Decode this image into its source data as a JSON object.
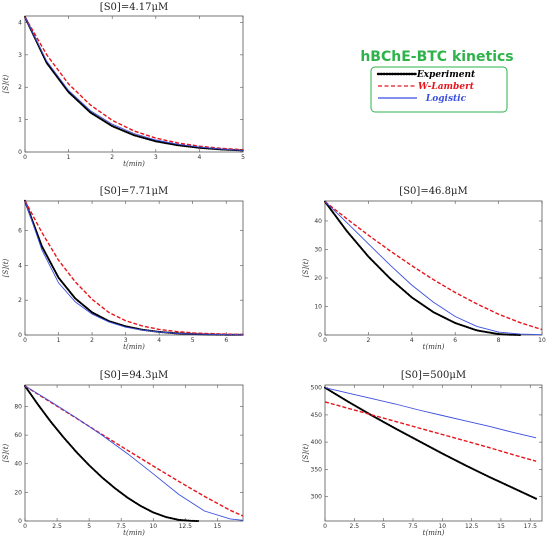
{
  "legend": {
    "title": "hBChE-BTC kinetics",
    "title_color": "#2db34a",
    "border_color": "#2db34a",
    "entries": [
      {
        "label": "Experiment",
        "color": "#000000",
        "style": "dotted",
        "icon": "dotted-line-icon"
      },
      {
        "label": "W-Lambert",
        "color": "#e8141c",
        "style": "dashed",
        "icon": "dashed-line-icon"
      },
      {
        "label": "Logistic",
        "color": "#3b4fe0",
        "style": "solid",
        "icon": "solid-line-icon"
      }
    ]
  },
  "chart_data": [
    {
      "type": "line",
      "title": "[S0]=4.17μM",
      "xlabel": "t(min)",
      "ylabel": "[S](t)",
      "xlim": [
        0,
        5
      ],
      "ylim": [
        0,
        4.2
      ],
      "xticks": [
        "0",
        "1",
        "2",
        "3",
        "4",
        "5"
      ],
      "yticks": [
        "0",
        "1",
        "2",
        "3",
        "4"
      ],
      "series": [
        {
          "name": "Experiment",
          "color": "#000000",
          "style": "dotted",
          "x": [
            0,
            0.5,
            1,
            1.5,
            2,
            2.5,
            3,
            3.5,
            4,
            4.5,
            5
          ],
          "y": [
            4.17,
            2.75,
            1.85,
            1.22,
            0.8,
            0.52,
            0.33,
            0.21,
            0.13,
            0.08,
            0.05
          ]
        },
        {
          "name": "W-Lambert",
          "color": "#e8141c",
          "style": "dashed",
          "x": [
            0,
            0.5,
            1,
            1.5,
            2,
            2.5,
            3,
            3.5,
            4,
            4.5,
            5
          ],
          "y": [
            4.17,
            3.0,
            2.1,
            1.45,
            0.98,
            0.65,
            0.43,
            0.28,
            0.18,
            0.11,
            0.07
          ]
        },
        {
          "name": "Logistic",
          "color": "#3b4fe0",
          "style": "solid",
          "x": [
            0,
            0.5,
            1,
            1.5,
            2,
            2.5,
            3,
            3.5,
            4,
            4.5,
            5
          ],
          "y": [
            4.17,
            2.8,
            1.9,
            1.28,
            0.86,
            0.57,
            0.37,
            0.24,
            0.15,
            0.09,
            0.05
          ]
        }
      ]
    },
    {
      "type": "line",
      "title": "[S0]=7.71μM",
      "xlabel": "t(min)",
      "ylabel": "[S](t)",
      "xlim": [
        0,
        6.5
      ],
      "ylim": [
        0,
        7.7
      ],
      "xticks": [
        "0",
        "1",
        "2",
        "3",
        "4",
        "5",
        "6"
      ],
      "yticks": [
        "0",
        "2",
        "4",
        "6"
      ],
      "series": [
        {
          "name": "Experiment",
          "color": "#000000",
          "style": "dotted",
          "x": [
            0,
            0.5,
            1,
            1.5,
            2,
            2.5,
            3,
            3.5,
            4,
            4.5,
            5,
            5.5,
            6,
            6.5
          ],
          "y": [
            7.71,
            5.1,
            3.3,
            2.1,
            1.3,
            0.8,
            0.5,
            0.3,
            0.18,
            0.1,
            0.06,
            0.03,
            0.02,
            0.01
          ]
        },
        {
          "name": "W-Lambert",
          "color": "#e8141c",
          "style": "dashed",
          "x": [
            0,
            0.5,
            1,
            1.5,
            2,
            2.5,
            3,
            3.5,
            4,
            4.5,
            5,
            5.5,
            6,
            6.5
          ],
          "y": [
            7.71,
            5.9,
            4.3,
            3.05,
            2.05,
            1.3,
            0.82,
            0.52,
            0.32,
            0.2,
            0.12,
            0.08,
            0.05,
            0.03
          ]
        },
        {
          "name": "Logistic",
          "color": "#3b4fe0",
          "style": "solid",
          "x": [
            0,
            0.5,
            1,
            1.5,
            2,
            2.5,
            3,
            3.5,
            4,
            4.5,
            5,
            5.5,
            6,
            6.5
          ],
          "y": [
            7.71,
            4.9,
            3.0,
            1.9,
            1.2,
            0.75,
            0.45,
            0.28,
            0.17,
            0.1,
            0.06,
            0.04,
            0.02,
            0.01
          ]
        }
      ]
    },
    {
      "type": "line",
      "title": "[S0]=46.8μM",
      "xlabel": "t(min)",
      "ylabel": "[S](t)",
      "xlim": [
        0,
        10
      ],
      "ylim": [
        0,
        47
      ],
      "xticks": [
        "0",
        "2",
        "4",
        "6",
        "8",
        "10"
      ],
      "yticks": [
        "0",
        "10",
        "20",
        "30",
        "40"
      ],
      "series": [
        {
          "name": "Experiment",
          "color": "#000000",
          "style": "dotted",
          "x": [
            0,
            1,
            2,
            3,
            4,
            5,
            6,
            7,
            8,
            8.5,
            9
          ],
          "y": [
            46.8,
            36.5,
            27.5,
            19.8,
            13.2,
            8.0,
            4.2,
            1.6,
            0.3,
            0.1,
            0.0
          ]
        },
        {
          "name": "W-Lambert",
          "color": "#e8141c",
          "style": "dashed",
          "x": [
            0,
            1,
            2,
            3,
            4,
            5,
            6,
            7,
            8,
            9,
            10
          ],
          "y": [
            46.8,
            40.8,
            35.0,
            29.5,
            24.3,
            19.4,
            14.9,
            10.9,
            7.3,
            4.3,
            1.9
          ]
        },
        {
          "name": "Logistic",
          "color": "#3b4fe0",
          "style": "solid",
          "x": [
            0,
            1,
            2,
            3,
            4,
            5,
            6,
            7,
            8,
            9,
            10
          ],
          "y": [
            46.8,
            39.5,
            32.0,
            24.5,
            17.5,
            11.5,
            6.5,
            3.0,
            1.0,
            0.3,
            0.1
          ]
        }
      ]
    },
    {
      "type": "line",
      "title": "[S0]=94.3μM",
      "xlabel": "t(min)",
      "ylabel": "[S](t)",
      "xlim": [
        0,
        17
      ],
      "ylim": [
        0,
        95
      ],
      "xticks": [
        "0",
        "2.5",
        "5",
        "7.5",
        "10",
        "12.5",
        "15"
      ],
      "yticks": [
        "0",
        "20",
        "40",
        "60",
        "80"
      ],
      "series": [
        {
          "name": "Experiment",
          "color": "#000000",
          "style": "dotted",
          "x": [
            0,
            1,
            2,
            3,
            4,
            5,
            6,
            7,
            8,
            9,
            10,
            11,
            12,
            13,
            13.5
          ],
          "y": [
            94.3,
            81.5,
            69.5,
            58.5,
            48.3,
            39.0,
            30.5,
            23.0,
            16.3,
            10.6,
            6.0,
            2.7,
            0.8,
            0.1,
            0.0
          ]
        },
        {
          "name": "W-Lambert",
          "color": "#e8141c",
          "style": "dashed",
          "x": [
            0,
            2,
            4,
            6,
            8,
            10,
            12,
            14,
            16,
            17
          ],
          "y": [
            94.3,
            83.0,
            71.8,
            60.5,
            49.4,
            38.4,
            27.6,
            17.2,
            7.5,
            3.5
          ]
        },
        {
          "name": "Logistic",
          "color": "#3b4fe0",
          "style": "solid",
          "x": [
            0,
            2,
            4,
            6,
            8,
            10,
            12,
            14,
            16,
            17
          ],
          "y": [
            94.3,
            83.5,
            72.0,
            60.0,
            47.0,
            33.0,
            18.5,
            7.0,
            1.5,
            0.5
          ]
        }
      ]
    },
    {
      "type": "line",
      "title": "[S0]=500μM",
      "xlabel": "t(min)",
      "ylabel": "[S](t)",
      "xlim": [
        0,
        18.5
      ],
      "ylim": [
        255,
        505
      ],
      "xticks": [
        "0",
        "2.5",
        "5",
        "7.5",
        "10",
        "12.5",
        "15",
        "17.5"
      ],
      "yticks": [
        "300",
        "350",
        "400",
        "450",
        "500"
      ],
      "series": [
        {
          "name": "Experiment",
          "color": "#000000",
          "style": "dotted",
          "x": [
            0,
            2,
            4,
            6,
            8,
            10,
            12,
            14,
            16,
            18
          ],
          "y": [
            500,
            474,
            449,
            425,
            402,
            379,
            357,
            336,
            316,
            296
          ]
        },
        {
          "name": "W-Lambert",
          "color": "#e8141c",
          "style": "dashed",
          "x": [
            0,
            2,
            4,
            6,
            8,
            10,
            12,
            14,
            16,
            18
          ],
          "y": [
            474,
            462,
            450,
            438,
            426,
            414,
            402,
            390,
            377,
            365
          ]
        },
        {
          "name": "Logistic",
          "color": "#3b4fe0",
          "style": "solid",
          "x": [
            0,
            2,
            4,
            6,
            8,
            10,
            12,
            14,
            16,
            18
          ],
          "y": [
            500,
            490,
            480,
            470,
            459,
            449,
            439,
            429,
            418,
            408
          ]
        }
      ]
    }
  ]
}
